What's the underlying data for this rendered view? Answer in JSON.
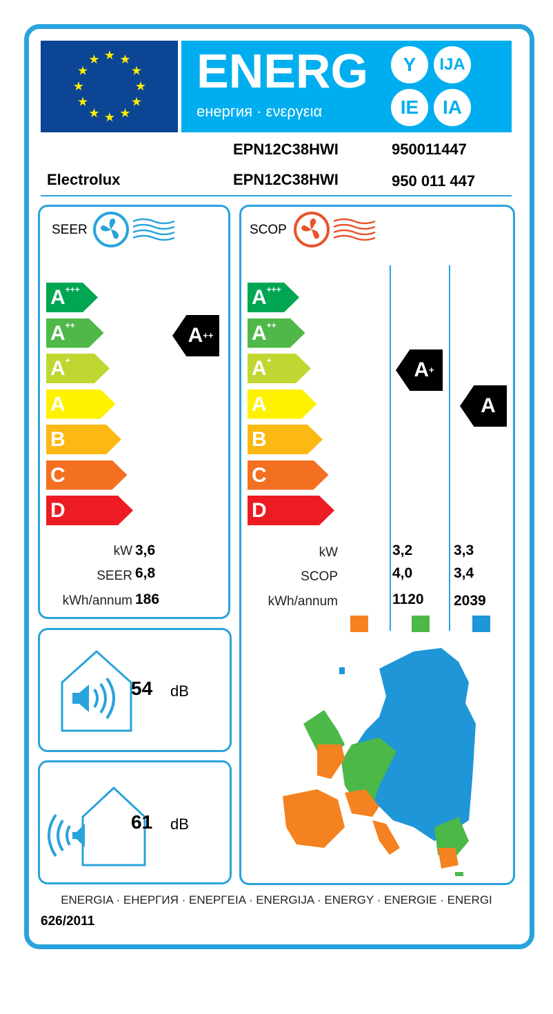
{
  "header": {
    "energy_word": "ENERG",
    "subtitle": "енергия · ενεργεια",
    "suffixes": [
      "Y",
      "IJA",
      "IE",
      "IA"
    ]
  },
  "supplier": "Electrolux",
  "models": {
    "row1": {
      "model": "EPN12C38HWI",
      "code": "950011447"
    },
    "row2": {
      "model": "EPN12C38HWI",
      "code": "950 011 447"
    }
  },
  "classes": [
    {
      "letter": "A",
      "plus": "+++",
      "color": "#00a651"
    },
    {
      "letter": "A",
      "plus": "++",
      "color": "#50b848"
    },
    {
      "letter": "A",
      "plus": "+",
      "color": "#bfd730"
    },
    {
      "letter": "A",
      "plus": "",
      "color": "#fff200"
    },
    {
      "letter": "B",
      "plus": "",
      "color": "#fdb913"
    },
    {
      "letter": "C",
      "plus": "",
      "color": "#f37021"
    },
    {
      "letter": "D",
      "plus": "",
      "color": "#ed1c24"
    }
  ],
  "cooling": {
    "label": "SEER",
    "rating": {
      "letter": "A",
      "plus": "++"
    },
    "kw_label": "kW",
    "kw": "3,6",
    "seer_label": "SEER",
    "seer": "6,8",
    "annum_label": "kWh/annum",
    "annum": "186",
    "icon": "fan-cool-icon",
    "color": "#29a3dc"
  },
  "heating": {
    "label": "SCOP",
    "icon": "fan-heat-icon",
    "color": "#e8542b",
    "kw_label": "kW",
    "scop_label": "SCOP",
    "annum_label": "kWh/annum",
    "columns": [
      {
        "rating": {
          "letter": "A",
          "plus": "+"
        },
        "kw": "3,2",
        "scop": "4,0",
        "annum": "1120",
        "zone_color": "#f58220"
      },
      {
        "rating": {
          "letter": "A",
          "plus": ""
        },
        "kw": "3,3",
        "scop": "3,4",
        "annum": "2039",
        "zone_color": "#1e96d8"
      }
    ],
    "zone_colors": [
      "#f58220",
      "#4cb848",
      "#1e96d8"
    ]
  },
  "noise": {
    "indoor": {
      "value": "54",
      "unit": "dB",
      "icon": "indoor-speaker-icon"
    },
    "outdoor": {
      "value": "61",
      "unit": "dB",
      "icon": "outdoor-speaker-icon"
    }
  },
  "footer": {
    "languages": "ENERGIA · ЕНЕРГИЯ · ΕΝΕΡΓΕΙΑ · ENERGIJA · ENERGY · ENERGIE · ENERGI",
    "regulation": "626/2011"
  }
}
